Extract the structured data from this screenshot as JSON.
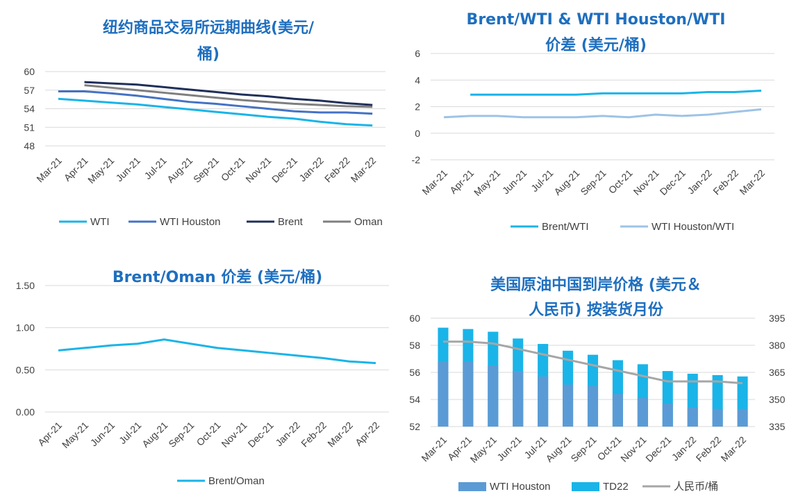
{
  "chart_data": [
    {
      "type": "line",
      "title": [
        "纽约商品交易所远期曲线(美元/",
        "桶)"
      ],
      "categories": [
        "Mar-21",
        "Apr-21",
        "May-21",
        "Jun-21",
        "Jul-21",
        "Aug-21",
        "Sep-21",
        "Oct-21",
        "Nov-21",
        "Dec-21",
        "Jan-22",
        "Feb-22",
        "Mar-22"
      ],
      "ylim": [
        48,
        60
      ],
      "yticks": [
        "48",
        "51",
        "54",
        "57",
        "60"
      ],
      "ytick_values": [
        48,
        51,
        54,
        57,
        60
      ],
      "grid": true,
      "legend_position": "bottom",
      "series": [
        {
          "name": "WTI",
          "color": "#1ab4e8",
          "values": [
            55.6,
            55.3,
            55.0,
            54.7,
            54.3,
            53.9,
            53.5,
            53.1,
            52.7,
            52.4,
            51.9,
            51.5,
            51.3
          ]
        },
        {
          "name": "WTI Houston",
          "color": "#4472c4",
          "values": [
            56.8,
            56.8,
            56.5,
            56.1,
            55.6,
            55.1,
            54.8,
            54.4,
            54.0,
            53.6,
            53.4,
            53.4,
            53.2
          ]
        },
        {
          "name": "Brent",
          "color": "#1f2f5a",
          "values": [
            null,
            58.3,
            58.1,
            57.9,
            57.5,
            57.1,
            56.7,
            56.3,
            56.0,
            55.6,
            55.3,
            54.9,
            54.6
          ]
        },
        {
          "name": "Oman",
          "color": "#7f7f7f",
          "values": [
            null,
            57.8,
            57.4,
            57.0,
            56.6,
            56.2,
            55.8,
            55.4,
            55.1,
            54.8,
            54.6,
            54.4,
            54.3
          ]
        }
      ]
    },
    {
      "type": "line",
      "title": [
        "Brent/WTI & WTI Houston/WTI",
        "价差 (美元/桶)"
      ],
      "categories": [
        "Mar-21",
        "Apr-21",
        "May-21",
        "Jun-21",
        "Jul-21",
        "Aug-21",
        "Sep-21",
        "Oct-21",
        "Nov-21",
        "Dec-21",
        "Jan-22",
        "Feb-22",
        "Mar-22"
      ],
      "ylim": [
        -2,
        6
      ],
      "yticks": [
        "-2",
        "0",
        "2",
        "4",
        "6"
      ],
      "ytick_values": [
        -2,
        0,
        2,
        4,
        6
      ],
      "grid": true,
      "legend_position": "bottom",
      "series": [
        {
          "name": "Brent/WTI",
          "color": "#1ab4e8",
          "values": [
            null,
            2.9,
            2.9,
            2.9,
            2.9,
            2.9,
            3.0,
            3.0,
            3.0,
            3.0,
            3.1,
            3.1,
            3.2
          ]
        },
        {
          "name": "WTI Houston/WTI",
          "color": "#9dc3e6",
          "values": [
            1.2,
            1.3,
            1.3,
            1.2,
            1.2,
            1.2,
            1.3,
            1.2,
            1.4,
            1.3,
            1.4,
            1.6,
            1.8
          ]
        }
      ]
    },
    {
      "type": "line",
      "title": [
        "Brent/Oman 价差 (美元/桶)"
      ],
      "categories": [
        "Apr-21",
        "May-21",
        "Jun-21",
        "Jul-21",
        "Aug-21",
        "Sep-21",
        "Oct-21",
        "Nov-21",
        "Dec-21",
        "Jan-22",
        "Feb-22",
        "Mar-22",
        "Apr-22"
      ],
      "ylim": [
        0,
        1.5
      ],
      "yticks": [
        "0.00",
        "0.50",
        "1.00",
        "1.50"
      ],
      "ytick_values": [
        0,
        0.5,
        1.0,
        1.5
      ],
      "grid": true,
      "legend_position": "bottom",
      "series": [
        {
          "name": "Brent/Oman",
          "color": "#1ab4e8",
          "values": [
            0.73,
            0.76,
            0.79,
            0.81,
            0.86,
            0.81,
            0.76,
            0.73,
            0.7,
            0.67,
            0.64,
            0.6,
            0.58
          ]
        }
      ]
    },
    {
      "type": "bar",
      "title": [
        "美国原油中国到岸价格 (美元＆",
        "人民币) 按装货月份"
      ],
      "categories": [
        "Mar-21",
        "Apr-21",
        "May-21",
        "Jun-21",
        "Jul-21",
        "Aug-21",
        "Sep-21",
        "Oct-21",
        "Nov-21",
        "Dec-21",
        "Jan-22",
        "Feb-22",
        "Mar-22"
      ],
      "ylim": [
        52,
        60
      ],
      "yticks": [
        "52",
        "54",
        "56",
        "58",
        "60"
      ],
      "ytick_values": [
        52,
        54,
        56,
        58,
        60
      ],
      "y2lim": [
        335,
        395
      ],
      "y2ticks": [
        "335",
        "350",
        "365",
        "380",
        "395"
      ],
      "y2tick_values": [
        335,
        350,
        365,
        380,
        395
      ],
      "legend_position": "bottom",
      "series": [
        {
          "name": "WTI Houston",
          "type": "bar",
          "color": "#5b9bd5",
          "values": [
            56.8,
            56.8,
            56.5,
            56.1,
            55.7,
            55.1,
            55.0,
            54.4,
            54.1,
            53.7,
            53.4,
            53.3,
            53.3
          ]
        },
        {
          "name": "TD22",
          "type": "bar",
          "color": "#1ab4e8",
          "values": [
            59.3,
            59.2,
            59.0,
            58.5,
            58.1,
            57.6,
            57.3,
            56.9,
            56.6,
            56.1,
            55.9,
            55.8,
            55.7
          ]
        },
        {
          "name": "人民币/桶",
          "type": "line",
          "axis": "secondary",
          "color": "#a6a6a6",
          "values": [
            382,
            382,
            381,
            378,
            375,
            372,
            369,
            366,
            363,
            360,
            360,
            360,
            359
          ]
        }
      ]
    }
  ]
}
